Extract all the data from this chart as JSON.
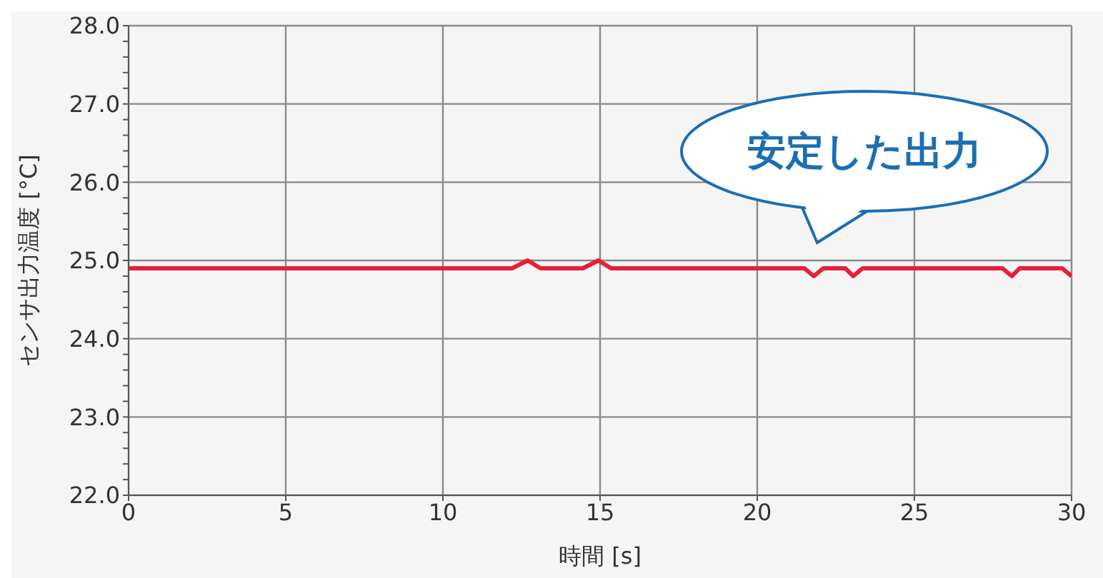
{
  "chart_data": {
    "type": "line",
    "xlabel": "時間 [s]",
    "ylabel": "センサ出力温度 [°C]",
    "annotations": [
      "安定した出力"
    ],
    "xlim": [
      0,
      30
    ],
    "xticks": [
      0,
      5,
      10,
      15,
      20,
      25,
      30
    ],
    "ylim": [
      22,
      28
    ],
    "yticks": [
      {
        "value": 22,
        "label": "22.0"
      },
      {
        "value": 22.2,
        "label": null
      },
      {
        "value": 22.4,
        "label": null
      },
      {
        "value": 22.6,
        "label": null
      },
      {
        "value": 22.8,
        "label": null
      },
      {
        "value": 23,
        "label": "23.0"
      },
      {
        "value": 23.2,
        "label": null
      },
      {
        "value": 23.4,
        "label": null
      },
      {
        "value": 23.6,
        "label": null
      },
      {
        "value": 23.8,
        "label": null
      },
      {
        "value": 24,
        "label": "24.0"
      },
      {
        "value": 24.2,
        "label": null
      },
      {
        "value": 24.4,
        "label": null
      },
      {
        "value": 24.6,
        "label": null
      },
      {
        "value": 24.8,
        "label": null
      },
      {
        "value": 25,
        "label": "25.0"
      },
      {
        "value": 25.2,
        "label": null
      },
      {
        "value": 25.4,
        "label": null
      },
      {
        "value": 25.6,
        "label": null
      },
      {
        "value": 25.8,
        "label": null
      },
      {
        "value": 26,
        "label": "26.0"
      },
      {
        "value": 26.2,
        "label": null
      },
      {
        "value": 26.4,
        "label": null
      },
      {
        "value": 26.6,
        "label": null
      },
      {
        "value": 26.8,
        "label": null
      },
      {
        "value": 27,
        "label": "27.0"
      },
      {
        "value": 27.2,
        "label": null
      },
      {
        "value": 27.4,
        "label": null
      },
      {
        "value": 27.6,
        "label": null
      },
      {
        "value": 27.8,
        "label": null
      },
      {
        "value": 28,
        "label": "28.0"
      }
    ],
    "grid": true,
    "marker": "none",
    "line_style": "solid",
    "series": [
      {
        "color": "#e8203a",
        "x": [
          0,
          12.2,
          12.7,
          13.1,
          14.45,
          14.95,
          15.35,
          21.5,
          21.8,
          22.1,
          22.8,
          23.05,
          23.35,
          27.8,
          28.1,
          28.35,
          29.7,
          30
        ],
        "values": [
          24.9,
          24.9,
          25.0,
          24.9,
          24.9,
          25.0,
          24.9,
          24.9,
          24.8,
          24.9,
          24.9,
          24.8,
          24.9,
          24.9,
          24.8,
          24.9,
          24.9,
          24.8
        ]
      }
    ]
  }
}
